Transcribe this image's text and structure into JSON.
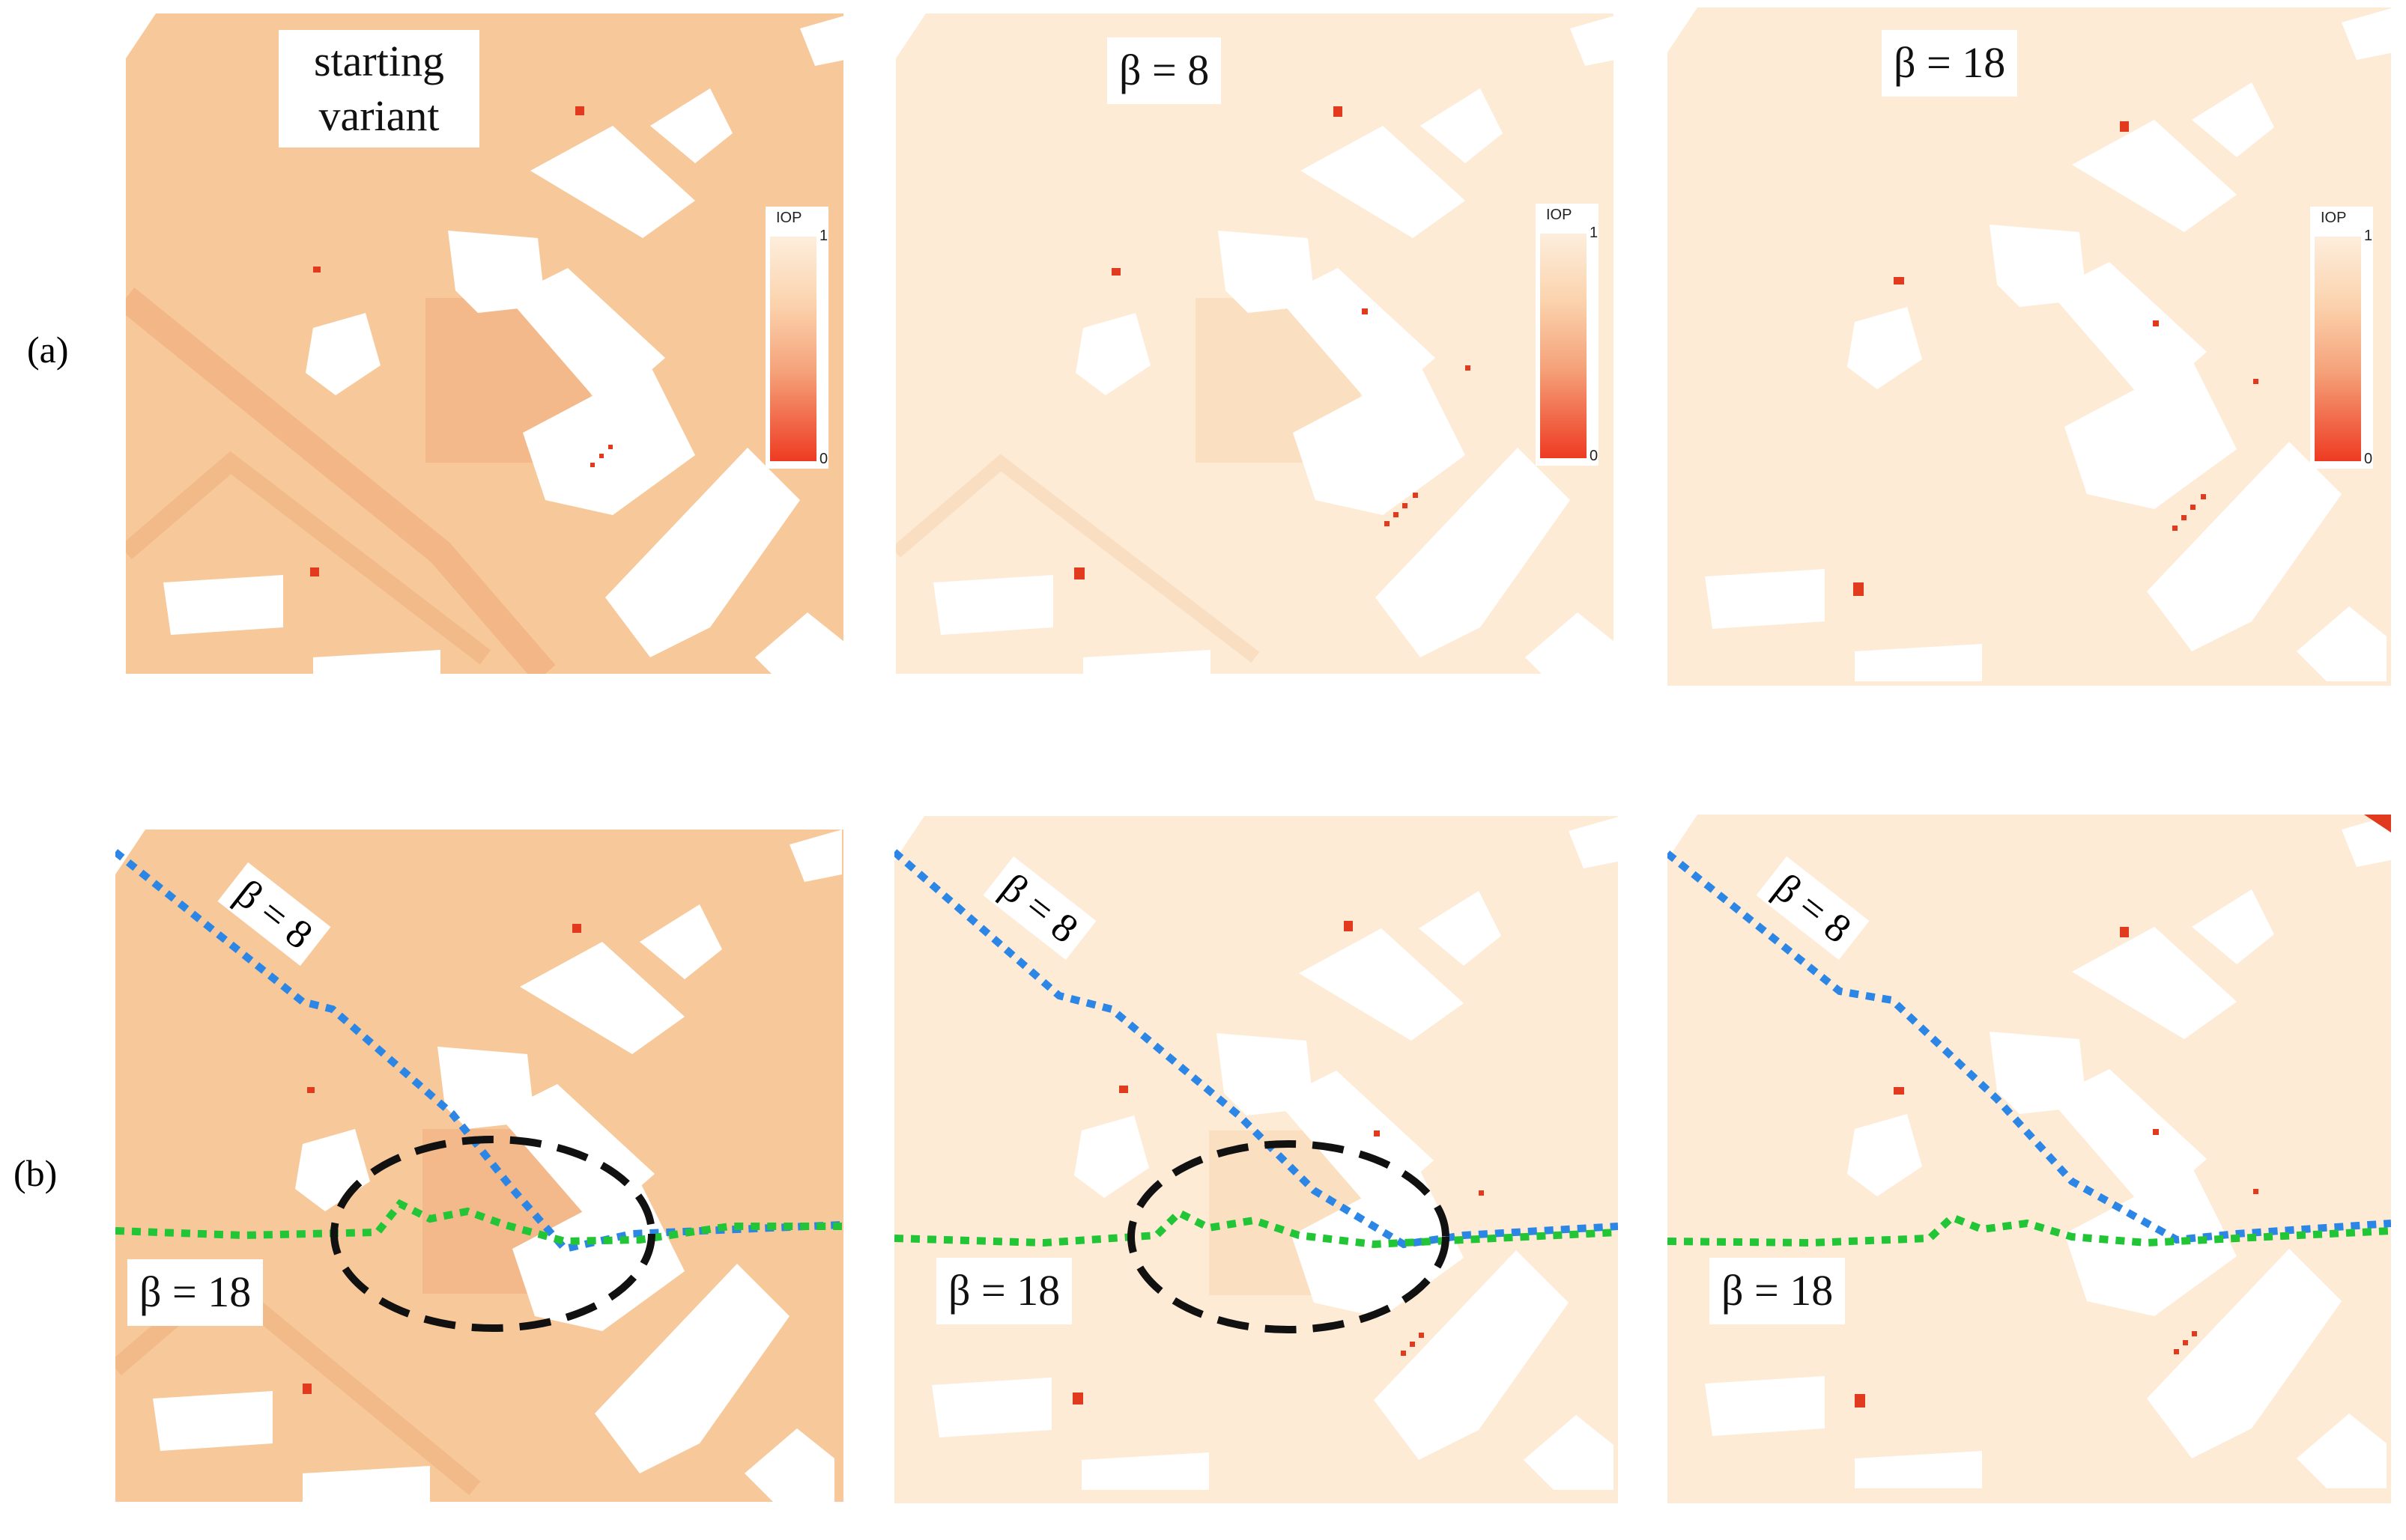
{
  "row_labels": {
    "a": "(a)",
    "b": "(b)"
  },
  "panel_labels": {
    "a1": "starting variant",
    "a2": "β = 8",
    "a3": "β = 18",
    "route_beta8": "β = 8",
    "route_beta18": "β = 18"
  },
  "legend": {
    "title": "IOP",
    "max": "1",
    "min": "0"
  },
  "colors": {
    "map_start": "#f7c99a",
    "map_beta": "#fdebd6",
    "building": "#ffffff",
    "hotspot": "#e23a1f",
    "route_beta8": "#2c86e6",
    "route_beta18": "#21c536",
    "highlight": "#111111"
  }
}
